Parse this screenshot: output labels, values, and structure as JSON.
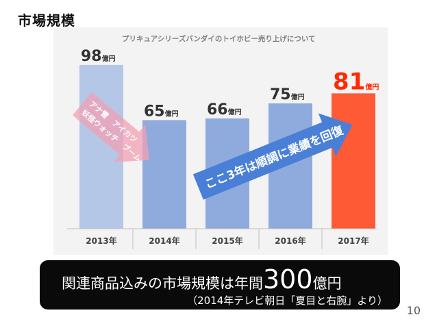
{
  "slide": {
    "title": "市場規模",
    "page_number": "10"
  },
  "callout": {
    "text_pre": "関連商品込みの市場規模は年間",
    "big_number": "300",
    "text_post": "億円",
    "source": "（2014年テレビ朝日「夏目と右腕」より）"
  },
  "chart_data": {
    "type": "bar",
    "title": "プリキュアシリーズバンダイのトイホビー売り上げについて",
    "categories": [
      "2013年",
      "2014年",
      "2015年",
      "2016年",
      "2017年"
    ],
    "values": [
      98,
      65,
      66,
      75,
      81
    ],
    "value_labels": [
      "98",
      "65",
      "66",
      "75",
      "81"
    ],
    "unit": "億円",
    "ylim": [
      0,
      100
    ],
    "highlight_index": 4,
    "colors": {
      "bars": [
        "#b4c7e7",
        "#8faadc",
        "#8faadc",
        "#8faadc",
        "#ff5a36"
      ],
      "highlight_text": "#ff2a00",
      "arrow_down": "#f2a0b4",
      "arrow_up": "#4a7fd8"
    },
    "annotations": {
      "down_arrow_line1": "アナ雪　アイカツ",
      "down_arrow_line2": "妖怪ウォッチ　ブーム",
      "up_arrow": "ここ3年は順調に業績を回復"
    }
  }
}
